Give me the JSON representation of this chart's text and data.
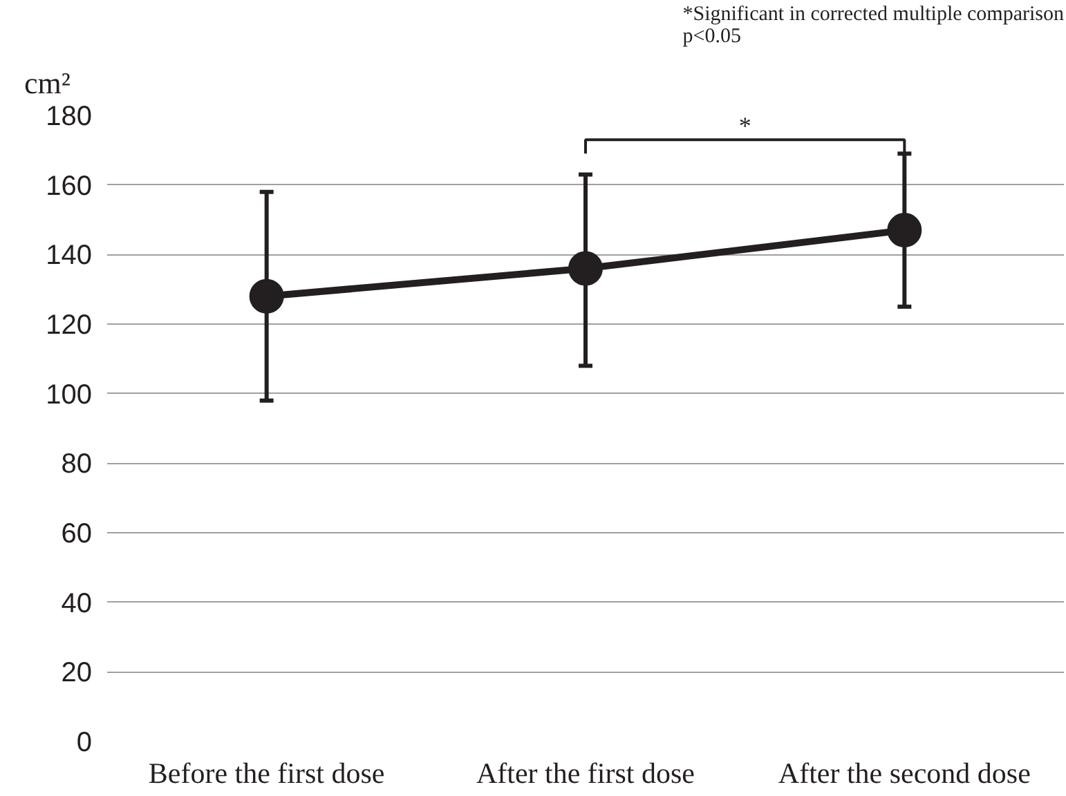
{
  "chart_data": {
    "type": "line",
    "ylabel": "cm²",
    "categories": [
      "Before the first dose",
      "After the first dose",
      "After the second dose"
    ],
    "series": [
      {
        "color": "#231f20",
        "values": [
          128,
          136,
          147
        ],
        "errors": [
          [
            98,
            158
          ],
          [
            108,
            163
          ],
          [
            125,
            169
          ]
        ]
      }
    ],
    "ylim": [
      0,
      180
    ],
    "yticks": [
      0,
      20,
      40,
      60,
      80,
      100,
      120,
      140,
      160,
      180
    ],
    "grid": "y",
    "marker": "circle",
    "line_style": "solid",
    "annotations": [
      "*Significant in corrected multiple comparison\np<0.05",
      "*"
    ]
  }
}
